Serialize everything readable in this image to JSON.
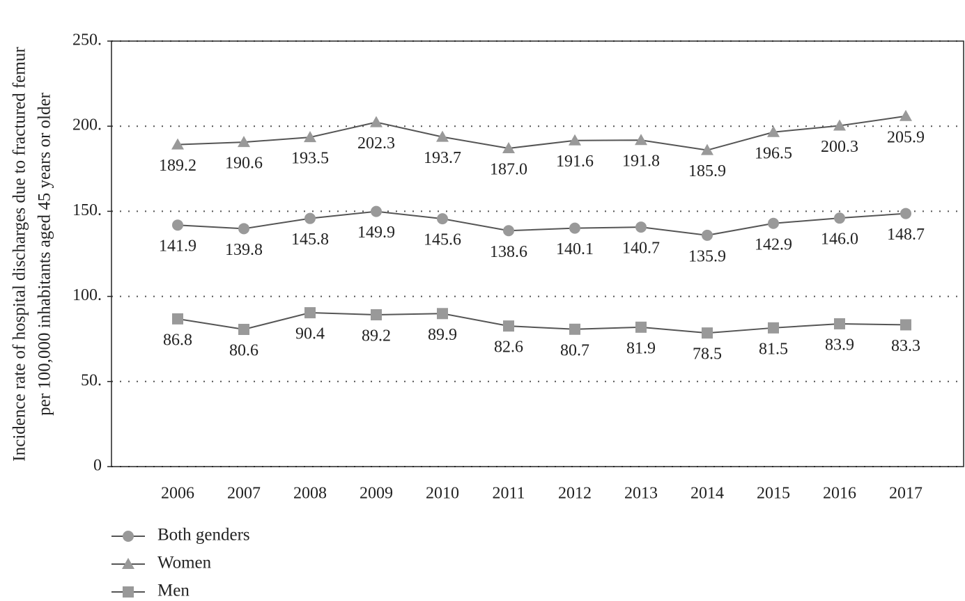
{
  "chart_data": {
    "type": "line",
    "ylabel": [
      "Incidence rate of hospital discharges due to fractured femur",
      "per 100,000 inhabitants aged 45 years or older"
    ],
    "categories": [
      "2006",
      "2007",
      "2008",
      "2009",
      "2010",
      "2011",
      "2012",
      "2013",
      "2014",
      "2015",
      "2016",
      "2017"
    ],
    "series": [
      {
        "name": "Both genders",
        "color": "#999999",
        "marker": "circle",
        "values": [
          141.9,
          139.8,
          145.8,
          149.9,
          145.6,
          138.6,
          140.1,
          140.7,
          135.9,
          142.9,
          146.0,
          148.7
        ],
        "value_labels": [
          "141.9",
          "139.8",
          "145.8",
          "149.9",
          "145.6",
          "138.6",
          "140.1",
          "140.7",
          "135.9",
          "142.9",
          "146.0",
          "148.7"
        ]
      },
      {
        "name": "Women",
        "color": "#999999",
        "marker": "triangle",
        "values": [
          189.2,
          190.6,
          193.5,
          202.3,
          193.7,
          187.0,
          191.6,
          191.8,
          185.9,
          196.5,
          200.3,
          205.9
        ],
        "value_labels": [
          "189.2",
          "190.6",
          "193.5",
          "202.3",
          "193.7",
          "187.0",
          "191.6",
          "191.8",
          "185.9",
          "196.5",
          "200.3",
          "205.9"
        ]
      },
      {
        "name": "Men",
        "color": "#999999",
        "marker": "square",
        "values": [
          86.8,
          80.6,
          90.4,
          89.2,
          89.9,
          82.6,
          80.7,
          81.9,
          78.5,
          81.5,
          83.9,
          83.3
        ],
        "value_labels": [
          "86.8",
          "80.6",
          "90.4",
          "89.2",
          "89.9",
          "82.6",
          "80.7",
          "81.9",
          "78.5",
          "81.5",
          "83.9",
          "83.3"
        ]
      }
    ],
    "line_color": "#555555",
    "ylim": [
      0,
      250
    ],
    "yticks": [
      0,
      {
        "value": 50,
        "label": "50."
      },
      {
        "value": 100,
        "label": "100."
      },
      {
        "value": 150,
        "label": "150."
      },
      {
        "value": 200,
        "label": "200."
      },
      {
        "value": 250,
        "label": "250."
      }
    ],
    "grid": true
  }
}
